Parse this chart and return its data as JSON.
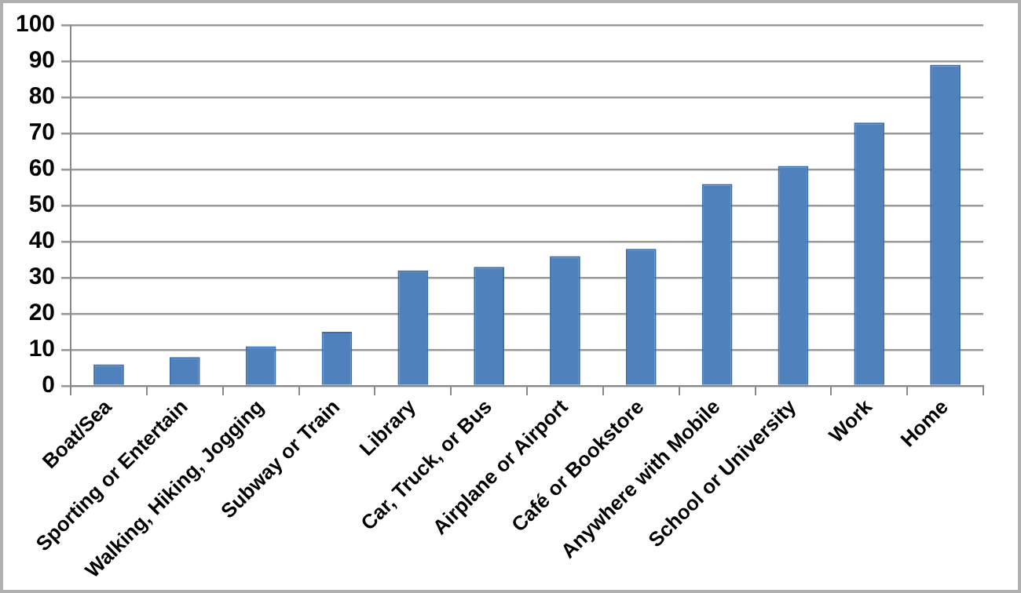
{
  "chart_data": {
    "type": "bar",
    "categories": [
      "Boat/Sea",
      "Sporting or Entertain",
      "Walking, Hiking, Jogging",
      "Subway or Train",
      "Library",
      "Car, Truck, or Bus",
      "Airplane or Airport",
      "Café or Bookstore",
      "Anywhere with Mobile",
      "School or University",
      "Work",
      "Home"
    ],
    "values": [
      6,
      8,
      11,
      15,
      32,
      33,
      36,
      38,
      56,
      61,
      73,
      89
    ],
    "color": "#4f81bd",
    "ylim": [
      0,
      100
    ],
    "yticks": [
      0,
      10,
      20,
      30,
      40,
      50,
      60,
      70,
      80,
      90,
      100
    ],
    "grid": "y",
    "legend": false
  }
}
